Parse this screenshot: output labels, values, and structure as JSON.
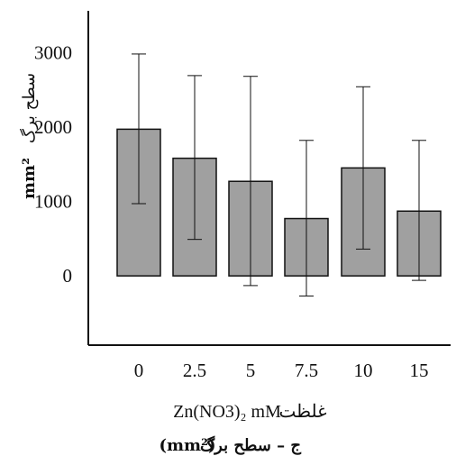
{
  "chart_data": {
    "type": "bar",
    "categories": [
      "0",
      "2.5",
      "5",
      "7.5",
      "10",
      "15"
    ],
    "values": [
      1970,
      1580,
      1270,
      770,
      1450,
      870
    ],
    "error_upper": [
      2980,
      2690,
      2680,
      1820,
      2540,
      1820
    ],
    "error_lower": [
      970,
      490,
      -130,
      -270,
      360,
      -60
    ],
    "yticks": [
      "3000",
      "2000",
      "1000",
      "0"
    ],
    "ylim": [
      -930,
      3560
    ],
    "ylabel_fa": "سطح برگ",
    "ylabel_unit": "mm²",
    "xlabel_en": "Zn(NO3)₂ mM",
    "xlabel_fa": "غلظت",
    "caption_fa": "ج – سطح برگ",
    "caption_unit": "(mm²)",
    "bar_color": "#a0a0a0",
    "grid": false
  }
}
